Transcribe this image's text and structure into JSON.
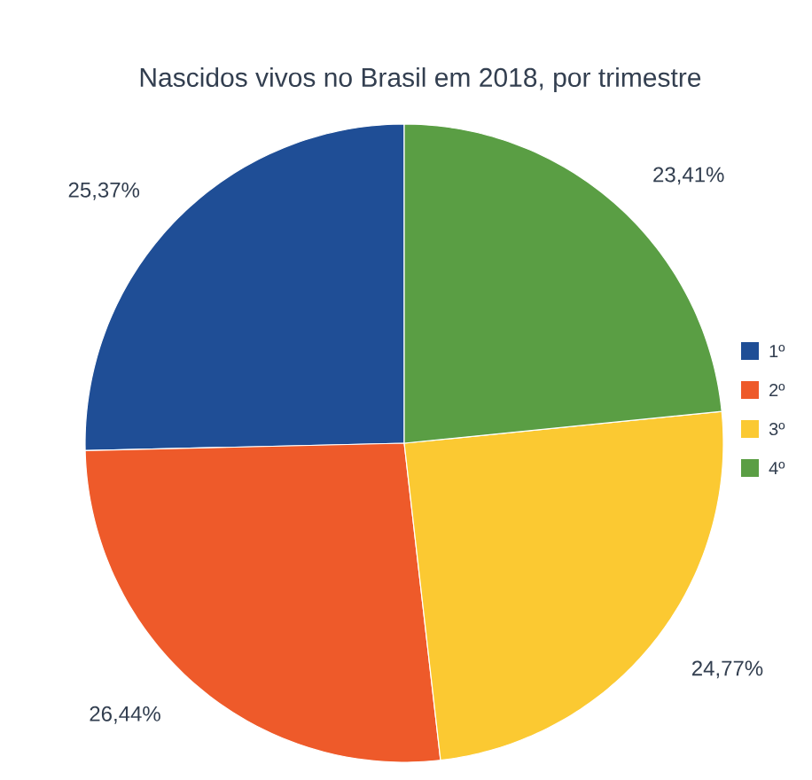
{
  "chart_data": {
    "type": "pie",
    "title": "Nascidos vivos no Brasil em 2018, por trimestre",
    "categories": [
      "1º",
      "2º",
      "3º",
      "4º"
    ],
    "values": [
      25.37,
      26.44,
      24.77,
      23.41
    ],
    "value_labels": [
      "25,37%",
      "26,44%",
      "24,77%",
      "23,41%"
    ],
    "colors": [
      "#1f4e96",
      "#ee5a2a",
      "#fbc932",
      "#5a9e44"
    ],
    "legend": "right"
  }
}
